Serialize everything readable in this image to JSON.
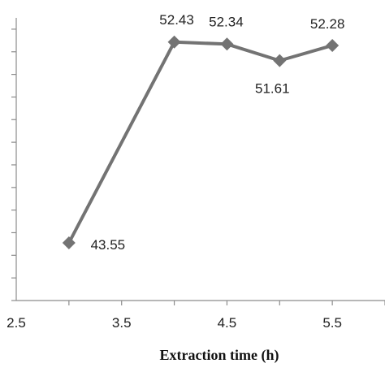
{
  "chart_data": {
    "type": "line",
    "title": "",
    "xlabel": "Extraction time (h)",
    "ylabel": "",
    "xlim": [
      2.5,
      6.0
    ],
    "ylim": [
      41.0,
      53.5
    ],
    "x_ticks": [
      "2.5",
      "3.5",
      "4.5",
      "5.5"
    ],
    "y_ticks_labeled": false,
    "grid": false,
    "legend": "none",
    "series": [
      {
        "color": "#737373",
        "marker": "diamond",
        "points": [
          {
            "x": 3.0,
            "y": 43.55,
            "label": "43.55"
          },
          {
            "x": 4.0,
            "y": 52.43,
            "label": "52.43"
          },
          {
            "x": 4.5,
            "y": 52.34,
            "label": "52.34"
          },
          {
            "x": 5.0,
            "y": 51.61,
            "label": "51.61"
          },
          {
            "x": 5.5,
            "y": 52.28,
            "label": "52.28"
          }
        ]
      }
    ]
  }
}
